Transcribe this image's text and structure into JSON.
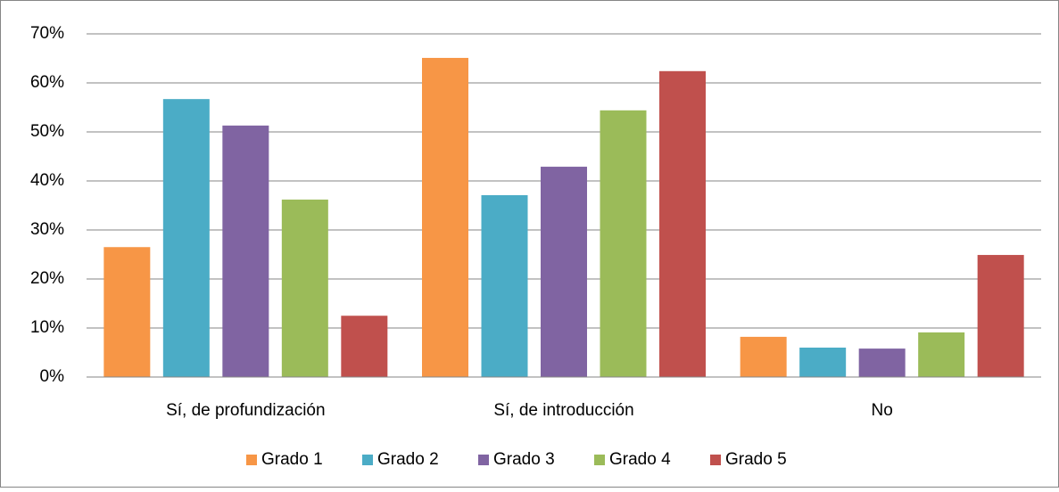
{
  "chart_data": {
    "type": "bar",
    "categories": [
      "Sí, de profundización",
      "Sí, de introducción",
      "No"
    ],
    "series": [
      {
        "name": "Grado 1",
        "color": "#f79646",
        "values": [
          26.5,
          65.1,
          8.2
        ]
      },
      {
        "name": "Grado 2",
        "color": "#4bacc6",
        "values": [
          56.7,
          37.1,
          6.0
        ]
      },
      {
        "name": "Grado 3",
        "color": "#8064a2",
        "values": [
          51.3,
          42.9,
          5.8
        ]
      },
      {
        "name": "Grado 4",
        "color": "#9bbb59",
        "values": [
          36.2,
          54.4,
          9.1
        ]
      },
      {
        "name": "Grado 5",
        "color": "#c0504d",
        "values": [
          12.5,
          62.4,
          24.9
        ]
      }
    ],
    "ylim": [
      0,
      70
    ],
    "yticks": [
      {
        "value": 0,
        "label": "0%"
      },
      {
        "value": 10,
        "label": "10%"
      },
      {
        "value": 20,
        "label": "20%"
      },
      {
        "value": 30,
        "label": "30%"
      },
      {
        "value": 40,
        "label": "40%"
      },
      {
        "value": 50,
        "label": "50%"
      },
      {
        "value": 60,
        "label": "60%"
      },
      {
        "value": 70,
        "label": "70%"
      }
    ],
    "grid": true,
    "legend": "bottom"
  }
}
